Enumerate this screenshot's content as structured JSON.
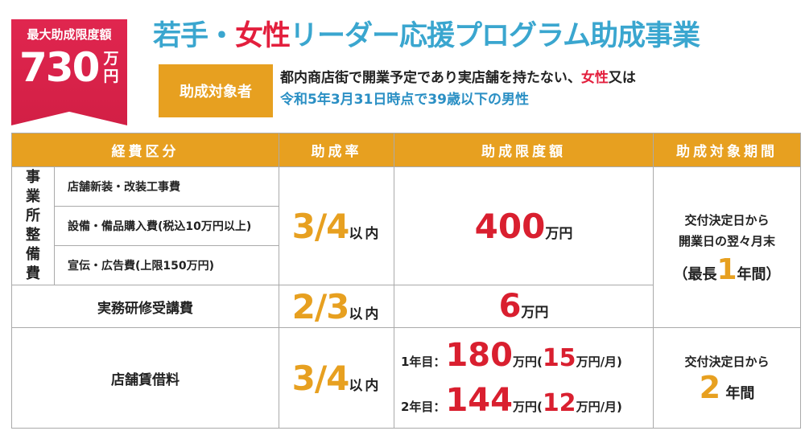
{
  "badge": {
    "label": "最大助成限度額",
    "amount": "730",
    "unit": "万円"
  },
  "title": {
    "part1": "若手・",
    "part2": "女性",
    "part3": "リーダー応援プログラム助成事業"
  },
  "target": {
    "label": "助成対象者",
    "line1_a": "都内商店街で開業予定であり実店舗を持たない、",
    "line1_b": "女性",
    "line1_c": "又は",
    "line2": "令和5年3月31日時点で39歳以下の男性"
  },
  "table": {
    "headers": [
      "経費区分",
      "助成率",
      "助成限度額",
      "助成対象期間"
    ],
    "group_label": "事業所整備費",
    "items": [
      "店舗新装・改装工事費",
      "設備・備品購入費(税込10万円以上)",
      "宣伝・広告費(上限150万円)"
    ],
    "rate1": "3/4",
    "rate_suffix": "以内",
    "limit1": "400",
    "unit_man_en": "万円",
    "period1_line1": "交付決定日から",
    "period1_line2": "開業日の翌々月末",
    "period1_open": "（最長",
    "period1_num": "1",
    "period1_close": "年間）",
    "training_label": "実務研修受講費",
    "rate2": "2/3",
    "limit2": "6",
    "rent_label": "店舗賃借料",
    "rate3": "3/4",
    "year1_label": "1年目：",
    "year1_amount": "180",
    "year1_monthly": "15",
    "year2_label": "2年目：",
    "year2_amount": "144",
    "year2_monthly": "12",
    "paren_open": "(",
    "monthly_suffix": "万円/月)",
    "period2_line1": "交付決定日から",
    "period2_num": "2",
    "period2_unit": "年間"
  }
}
